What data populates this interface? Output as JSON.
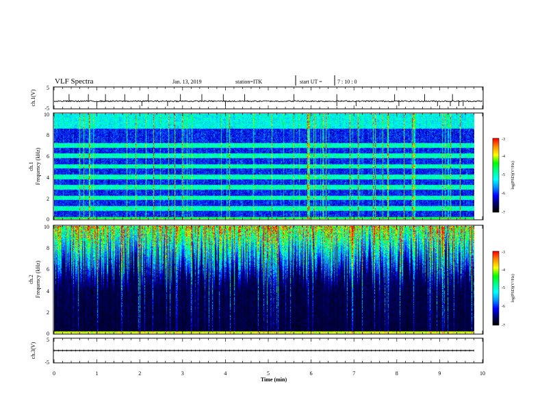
{
  "header": {
    "title": "VLF Spectra",
    "date": "Jan. 13, 2019",
    "station": "station=ITK",
    "start_label": "start UT =",
    "start_time": "7 : 10 : 0"
  },
  "colors": {
    "background": "#ffffff",
    "spectrogram_low": "#000000",
    "axis": "#000000",
    "colormap": [
      "#000000",
      "#00006a",
      "#0000ff",
      "#0090ff",
      "#00ffff",
      "#00ff90",
      "#00ff00",
      "#ffff00",
      "#ff9000",
      "#ff0000",
      "#ffffff"
    ]
  },
  "chart_data": [
    {
      "type": "line",
      "panel": "ch1-waveform",
      "ylabel": "ch.1(V)",
      "ylim": [
        -5,
        5
      ],
      "y_ticks": [
        "5",
        "-5"
      ],
      "xlim": [
        0,
        10
      ],
      "baseline": -1.5,
      "noise_amplitude": 0.3,
      "spikes_up_min": [
        0.35,
        0.8,
        1.2,
        1.65,
        2.2,
        2.95,
        3.45,
        3.95,
        4.45,
        5.6,
        6.6,
        7.95,
        8.65,
        9.3
      ],
      "spikes_down_min": [
        1.0,
        2.05,
        2.65,
        4.0,
        6.6,
        7.05,
        8.05,
        8.95,
        9.25,
        9.45,
        9.55
      ],
      "spike_amplitude": 3.2
    },
    {
      "type": "heatmap",
      "panel": "ch1-spectrogram",
      "ylabel": "ch.1\nFrequency (kHz)",
      "ylabel_top": "ch.1",
      "ylabel_main": "Frequency (kHz)",
      "ylim": [
        0,
        10
      ],
      "y_ticks": [
        "0",
        "2",
        "4",
        "6",
        "8",
        "10"
      ],
      "xlim": [
        0,
        9.8
      ],
      "value_range": [
        -7,
        -3
      ],
      "background_level": -6.2,
      "horizontal_bands_khz": [
        1,
        2,
        3,
        4,
        5,
        6,
        7
      ],
      "colorbar": {
        "label": "log(PSD)(V²/Hz)",
        "ticks": [
          "-3",
          "-4",
          "-5",
          "-6",
          "-7"
        ]
      }
    },
    {
      "type": "heatmap",
      "panel": "ch2-spectrogram",
      "ylabel_top": "ch.2",
      "ylabel_main": "Frequency (kHz)",
      "ylim": [
        0,
        10
      ],
      "y_ticks": [
        "0",
        "2",
        "4",
        "6",
        "8",
        "10"
      ],
      "xlim": [
        0,
        9.8
      ],
      "value_range": [
        -7,
        -3
      ],
      "background_level": -7.0,
      "colorbar": {
        "label": "log(PSD)(V²/Hz)",
        "ticks": [
          "-3",
          "-4",
          "-5",
          "-6",
          "-7"
        ]
      }
    },
    {
      "type": "line",
      "panel": "ch3-waveform",
      "ylabel": "ch.3(V)",
      "ylim": [
        -5,
        5
      ],
      "y_ticks": [
        "5",
        "-5"
      ],
      "xlim": [
        0,
        9.8
      ],
      "baseline": 0,
      "xlabel": "Time  (min)",
      "x_ticks": [
        "0",
        "1",
        "2",
        "3",
        "4",
        "5",
        "6",
        "7",
        "8",
        "9",
        "10"
      ],
      "x_tick_values": [
        0,
        1,
        2,
        3,
        4,
        5,
        6,
        7,
        8,
        9,
        10
      ]
    }
  ]
}
